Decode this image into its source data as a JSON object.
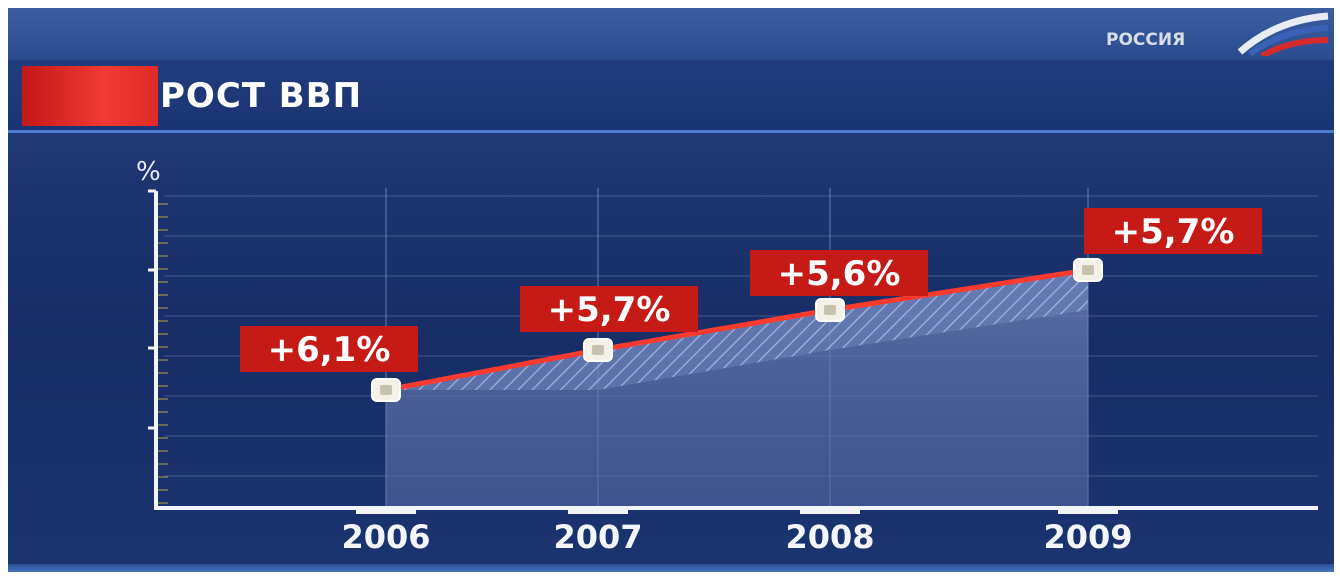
{
  "header": {
    "title": "РОСТ ВВП",
    "logo_text": "РОССИЯ"
  },
  "colors": {
    "accent_red": "#e02a26",
    "line_red": "#ff3b2f",
    "label_bg": "#c51a16",
    "background": "#1b3470"
  },
  "chart_data": {
    "type": "line",
    "title": "",
    "ylabel": "%",
    "xlabel": "",
    "categories": [
      "2006",
      "2007",
      "2008",
      "2009"
    ],
    "series": [
      {
        "values": [
          6.1,
          5.7,
          5.6,
          5.7
        ],
        "labels": [
          "+6,1%",
          "+5,7%",
          "+5,6%",
          "+5,7%"
        ]
      }
    ],
    "grid": true,
    "legend": "none"
  }
}
